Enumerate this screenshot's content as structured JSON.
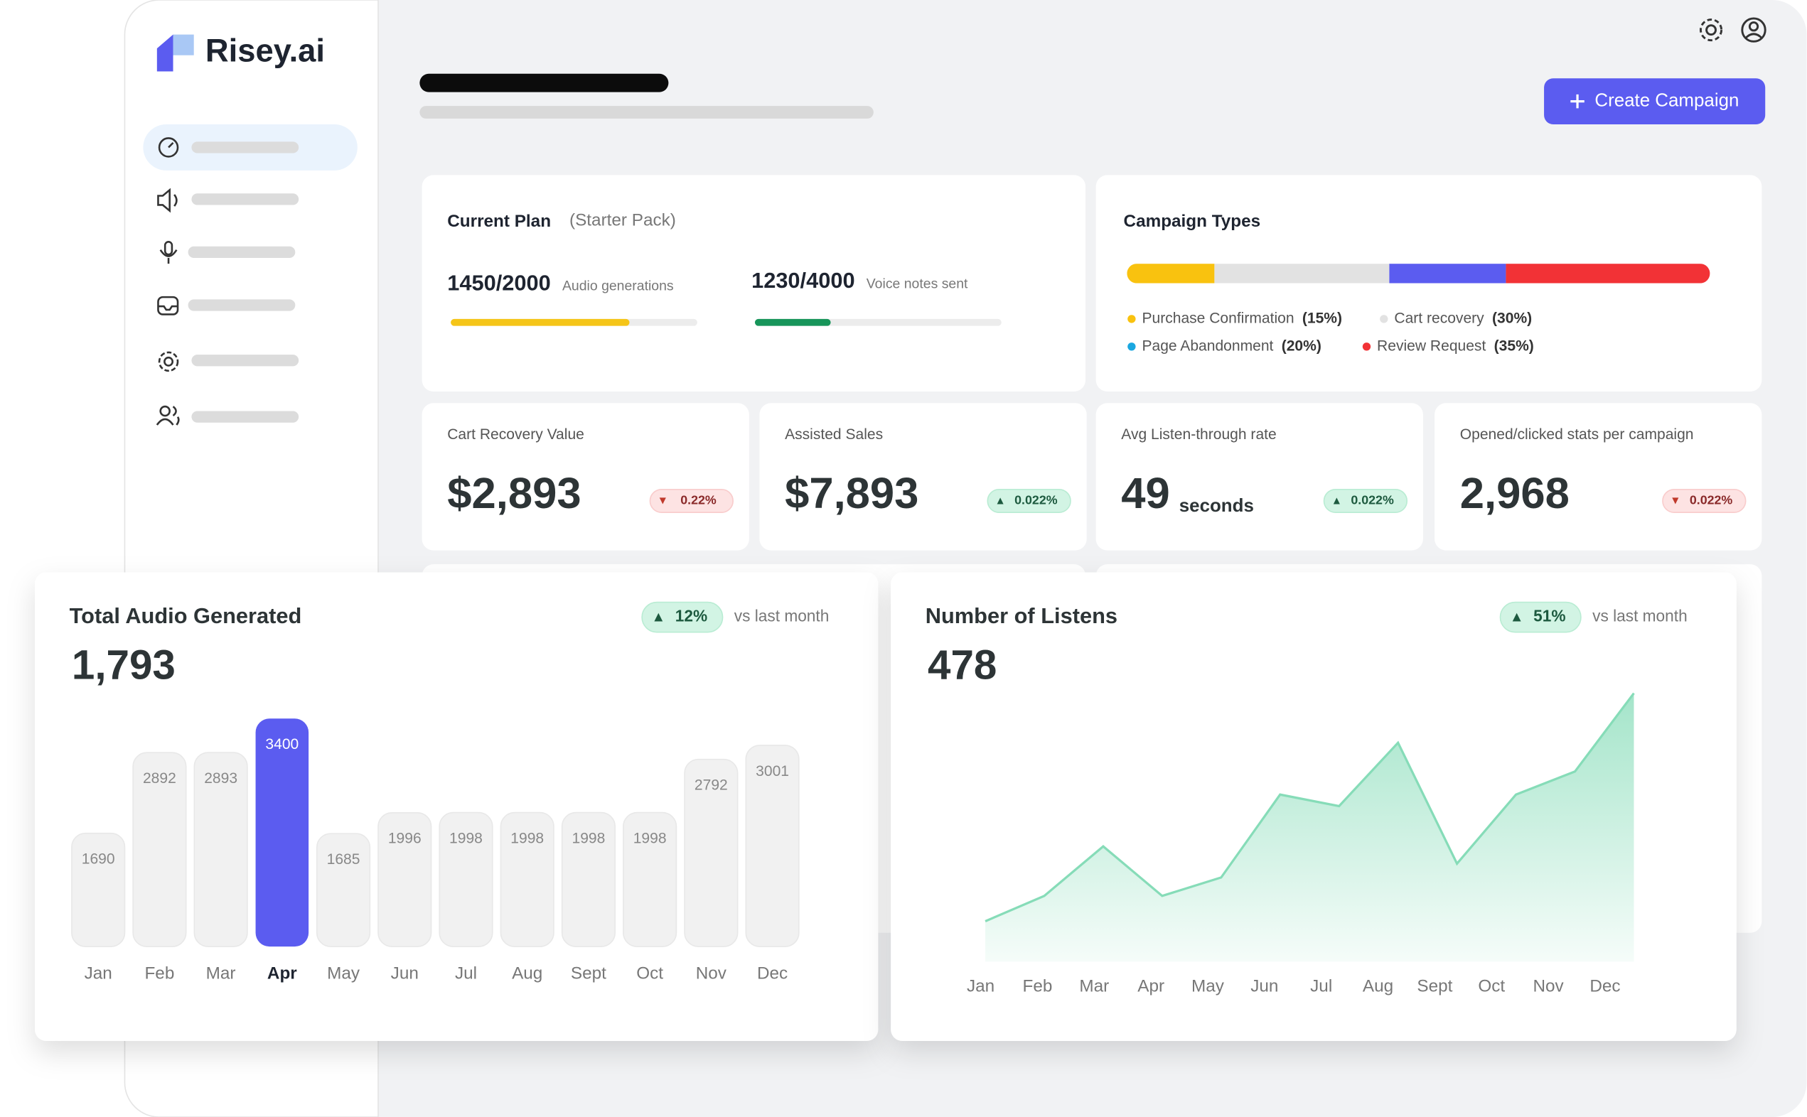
{
  "brand": "Risey.ai",
  "create_button": "Create Campaign",
  "plan": {
    "title": "Current Plan",
    "subtitle": "(Starter Pack)",
    "meters": [
      {
        "label": "1450/2000",
        "used": 1450,
        "total": 2000,
        "caption": "Audio generations",
        "color": "#f5c518"
      },
      {
        "label": "1230/4000",
        "used": 1230,
        "total": 4000,
        "caption": "Voice notes sent",
        "color": "#17955a"
      }
    ]
  },
  "campaign_types": {
    "title": "Campaign Types",
    "series": [
      {
        "name": "Purchase Confirmation",
        "value": 15,
        "value_label": "(15%)",
        "color": "#f9c20f"
      },
      {
        "name": "Cart recovery",
        "value": 30,
        "value_label": "(30%)",
        "color": "#e2e2e2"
      },
      {
        "name": "Page Abandonment",
        "value": 20,
        "value_label": "(20%)",
        "color": "#5b5cf0"
      },
      {
        "name": "Review Request",
        "value": 35,
        "value_label": "(35%)",
        "color": "#f23236"
      }
    ]
  },
  "stats": [
    {
      "title": "Cart Recovery Value",
      "value": "$2,893",
      "change": "0.22%",
      "trend": "down"
    },
    {
      "title": "Assisted Sales",
      "value": "$7,893",
      "change": "0.022%",
      "trend": "up"
    },
    {
      "title": "Avg Listen-through rate",
      "value": "49",
      "unit": "seconds",
      "change": "0.022%",
      "trend": "up"
    },
    {
      "title": "Opened/clicked stats per campaign",
      "value": "2,968",
      "change": "0.022%",
      "trend": "down"
    }
  ],
  "chart_data": [
    {
      "type": "bar",
      "title": "Total Audio Generated",
      "total": "1,793",
      "change": "12%",
      "trend": "up",
      "comparison": "vs last month",
      "categories": [
        "Jan",
        "Feb",
        "Mar",
        "Apr",
        "May",
        "Jun",
        "Jul",
        "Aug",
        "Sept",
        "Oct",
        "Nov",
        "Dec"
      ],
      "values": [
        1690,
        2892,
        2893,
        3400,
        1685,
        1996,
        1998,
        1998,
        1998,
        1998,
        2792,
        3001
      ],
      "color": "#f1f1f1",
      "highlight_color": "#5b5cf0",
      "highlight_index": 3
    },
    {
      "type": "area",
      "title": "Number of Listens",
      "total": "478",
      "change": "51%",
      "trend": "up",
      "comparison": "vs last month",
      "categories": [
        "Jan",
        "Feb",
        "Mar",
        "Apr",
        "May",
        "Jun",
        "Jul",
        "Aug",
        "Sept",
        "Oct",
        "Nov",
        "Dec"
      ],
      "values": [
        35,
        57,
        100,
        57,
        73,
        145,
        135,
        190,
        85,
        145,
        165,
        233
      ],
      "ylim": [
        0,
        240
      ],
      "color": "#86dcb8"
    }
  ]
}
